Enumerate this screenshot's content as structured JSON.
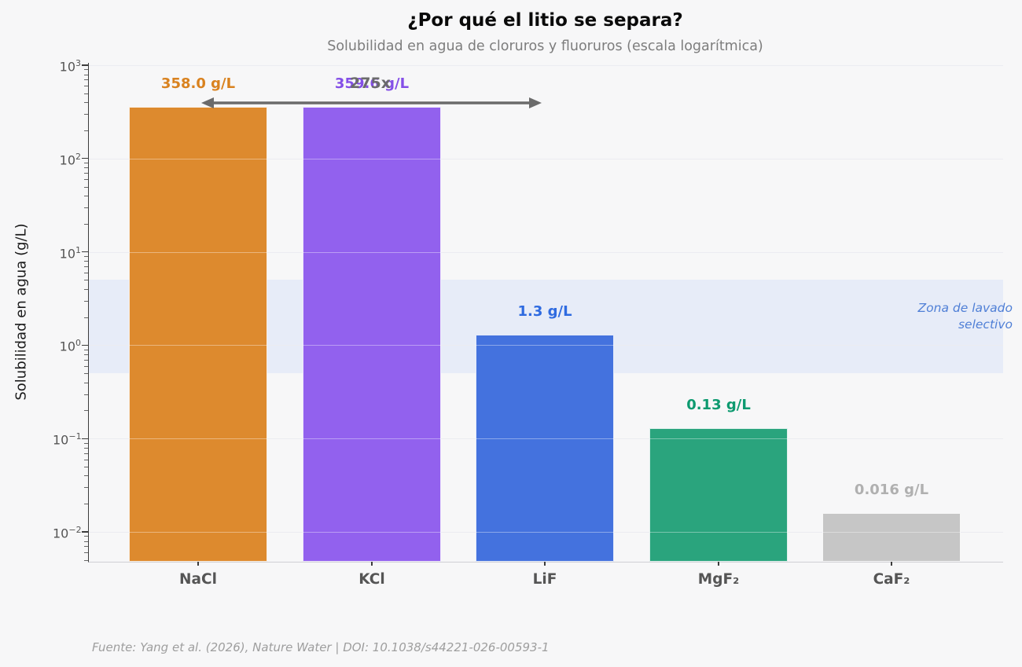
{
  "title": "¿Por qué el litio se separa?",
  "subtitle": "Solubilidad en agua de cloruros y fluoruros (escala logarítmica)",
  "source_note": "Fuente: Yang et al. (2026), Nature Water | DOI: 10.1038/s44221-026-00593-1",
  "y_axis": {
    "label": "Solubilidad en agua (g/L)",
    "tick_exponents": [
      3,
      2,
      1,
      0,
      -1,
      -2
    ]
  },
  "band": {
    "line1": "Zona de lavado",
    "line2": "selectivo",
    "value_from": 0.5,
    "value_to": 5,
    "fill_color": "#e7ecf8",
    "label_color": "#4f7fd6"
  },
  "arrow_annotation": {
    "label": "275x",
    "color": "#6b6b6b",
    "from_category": "NaCl",
    "to_category": "LiF"
  },
  "chart_data": {
    "type": "bar",
    "scale_y": "log",
    "title": "¿Por qué el litio se separa?",
    "subtitle": "Solubilidad en agua de cloruros y fluoruros (escala logarítmica)",
    "ylabel": "Solubilidad en agua (g/L)",
    "ylim": [
      0.005,
      1000
    ],
    "grid": true,
    "categories": [
      "NaCl",
      "KCl",
      "LiF",
      "MgF₂",
      "CaF₂"
    ],
    "values": [
      358.0,
      359.6,
      1.3,
      0.13,
      0.016
    ],
    "value_labels": [
      "358.0 g/L",
      "359.6 g/L",
      "1.3 g/L",
      "0.13 g/L",
      "0.016 g/L"
    ],
    "bar_colors": [
      "#dd8a2e",
      "#9261ee",
      "#4472de",
      "#2aa47d",
      "#c6c6c6"
    ],
    "value_label_colors": [
      "#d9821f",
      "#844fe7",
      "#2f6be0",
      "#0d9a70",
      "#b0b0b0"
    ],
    "highlight_band": {
      "from": 0.5,
      "to": 5,
      "label": "Zona de lavado selectivo"
    },
    "annotations": [
      {
        "type": "double-arrow",
        "text": "275x",
        "from_category": "NaCl",
        "to_category": "LiF",
        "at_value": 362
      }
    ]
  }
}
